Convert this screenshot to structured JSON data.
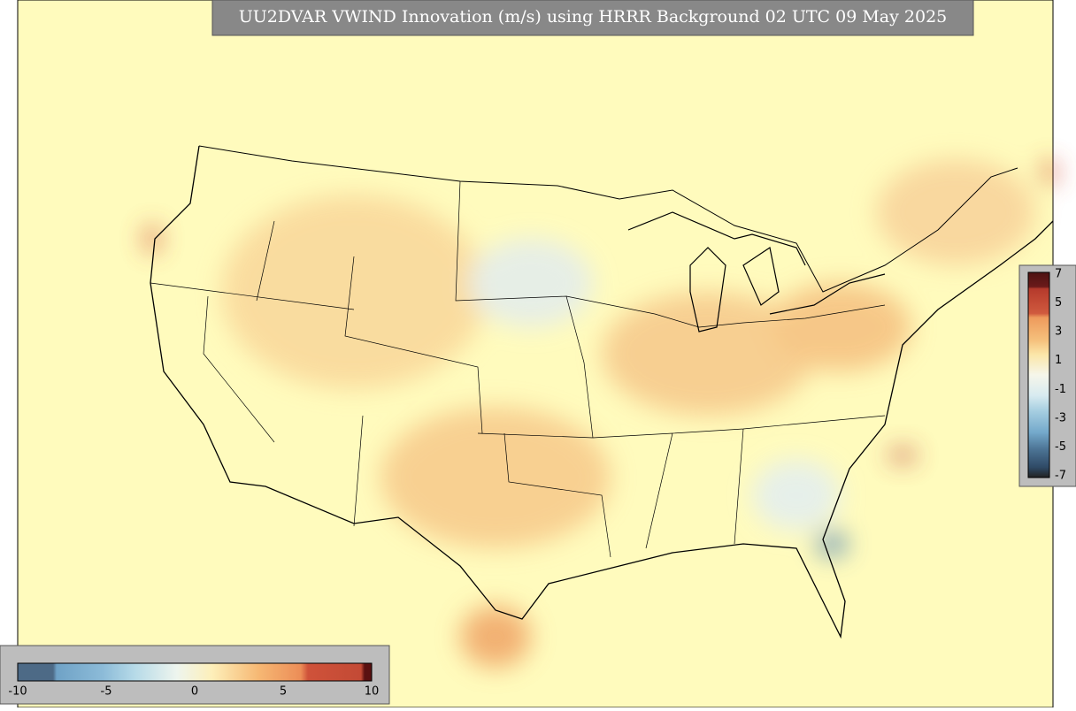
{
  "header": {
    "title": "UU2DVAR VWIND Innovation (m/s) using HRRR Background 02 UTC 09 May 2025"
  },
  "colorbars": [
    {
      "ticks": [
        7,
        5,
        3,
        1,
        -1,
        -3,
        -5,
        -7
      ]
    },
    {
      "ticks": [
        -10,
        -5,
        0,
        5,
        10
      ]
    }
  ]
}
